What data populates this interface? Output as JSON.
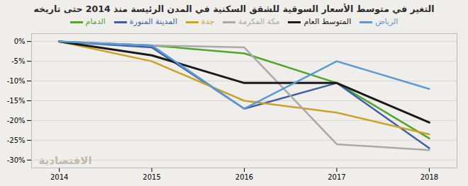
{
  "chart_data": {
    "type": "line",
    "title": "التغير في متوسط الأسعار السوقية للشقق السكنية في المدن الرئيسة منذ 2014 حتى تاريخه",
    "x": [
      2014,
      2015,
      2016,
      2017,
      2018
    ],
    "series": [
      {
        "name": "الدمام",
        "color": "#4ea72a",
        "values": [
          0,
          -1.0,
          -3.0,
          -10.5,
          -24.5
        ],
        "line_style": "solid"
      },
      {
        "name": "المدينة المنورة",
        "color": "#3e5fa8",
        "values": [
          0,
          -1.5,
          -17.0,
          -10.5,
          -27.0
        ],
        "line_style": "solid"
      },
      {
        "name": "جدة",
        "color": "#c9a227",
        "values": [
          0,
          -5.0,
          -15.0,
          -18.0,
          -23.5
        ],
        "line_style": "solid"
      },
      {
        "name": "مكة المكرمة",
        "color": "#a9a9a9",
        "values": [
          0,
          -1.0,
          -1.5,
          -26.0,
          -27.5
        ],
        "line_style": "solid"
      },
      {
        "name": "المتوسط العام",
        "color": "#1a1a1a",
        "values": [
          0,
          -3.5,
          -10.5,
          -10.5,
          -20.5
        ],
        "line_style": "solid"
      },
      {
        "name": "الرياض",
        "color": "#5b9bd5",
        "values": [
          0,
          -1.0,
          -17.0,
          -5.0,
          -12.0
        ],
        "line_style": "solid"
      }
    ],
    "xlim": [
      2013.7,
      2018.3
    ],
    "xticks": [
      2014,
      2015,
      2016,
      2017,
      2018
    ],
    "ylim": [
      -32,
      2
    ],
    "yticks": [
      {
        "value": 0,
        "label": "0%"
      },
      {
        "value": -5,
        "label": "-5%"
      },
      {
        "value": -10,
        "label": "-10%"
      },
      {
        "value": -15,
        "label": "-15%"
      },
      {
        "value": -20,
        "label": "-20%"
      },
      {
        "value": -25,
        "label": "-25%"
      },
      {
        "value": -30,
        "label": "-30%"
      }
    ],
    "grid": true,
    "legend": "top",
    "annotations": [
      "الاقتصادية"
    ]
  }
}
